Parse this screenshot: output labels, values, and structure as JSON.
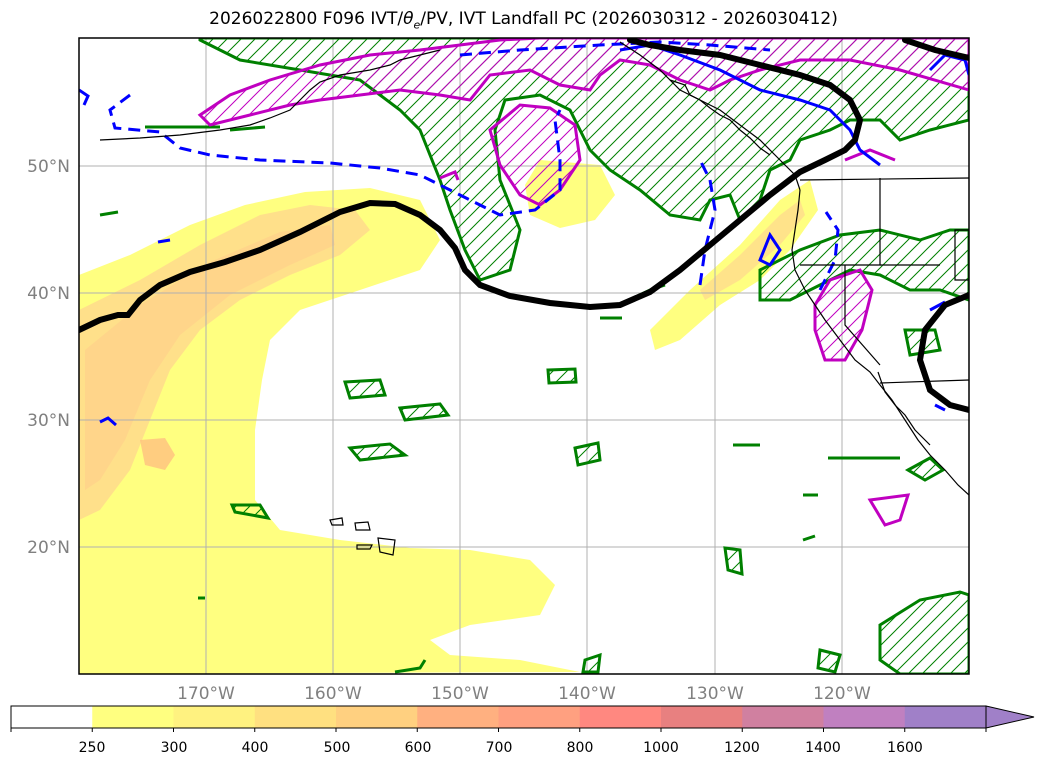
{
  "title": {
    "prefix": "2026022800 F096 IVT/",
    "theta": "θ",
    "theta_sub": "e",
    "suffix": "/PV, IVT Landfall PC (2026030312 - 2026030412)"
  },
  "map": {
    "lon_range": [
      -180,
      -110
    ],
    "lat_range": [
      10,
      60
    ],
    "grid": true,
    "lat_ticks": [
      {
        "value": 50,
        "label": "50°N"
      },
      {
        "value": 40,
        "label": "40°N"
      },
      {
        "value": 30,
        "label": "30°N"
      },
      {
        "value": 20,
        "label": "20°N"
      }
    ],
    "lon_ticks": [
      {
        "value": -170,
        "label": "170°W"
      },
      {
        "value": -160,
        "label": "160°W"
      },
      {
        "value": -150,
        "label": "150°W"
      },
      {
        "value": -140,
        "label": "140°W"
      },
      {
        "value": -130,
        "label": "130°W"
      },
      {
        "value": -120,
        "label": "120°W"
      }
    ]
  },
  "colorbar": {
    "levels": [
      "250",
      "300",
      "400",
      "500",
      "600",
      "700",
      "800",
      "1000",
      "1200",
      "1400",
      "1600"
    ],
    "colors": [
      "#ffffff",
      "#ffff80",
      "#fff280",
      "#ffe080",
      "#ffd080",
      "#ffb080",
      "#ffa080",
      "#ff8880",
      "#e88080",
      "#d080a0",
      "#c080c0",
      "#a080c8"
    ],
    "extend": "max"
  },
  "colors": {
    "pv_contour": "#008000",
    "theta_e_warm": "#c000c0",
    "theta_e_cold": "#0000ff",
    "landfall_pc": "#000000",
    "coastline": "#000000",
    "grid": "#b0b0b0"
  }
}
